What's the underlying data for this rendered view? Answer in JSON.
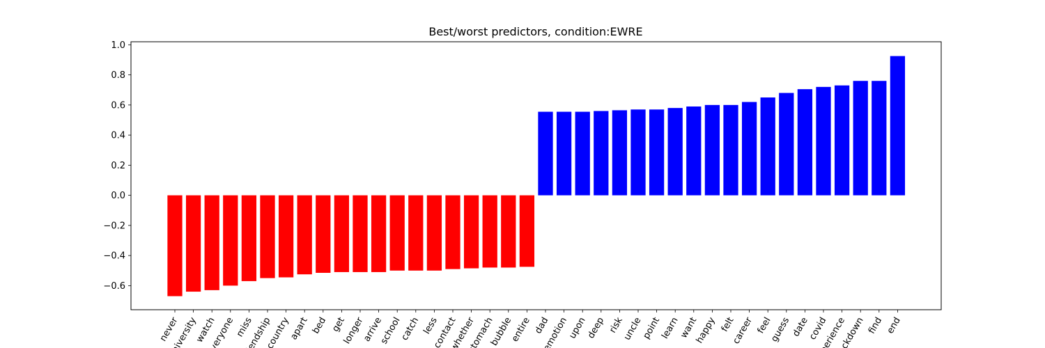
{
  "chart_data": {
    "type": "bar",
    "title": "Best/worst predictors, condition:EWRE",
    "xlabel": "",
    "ylabel": "",
    "ylim": [
      -0.76,
      1.02
    ],
    "yticks": [
      -0.6,
      -0.4,
      -0.2,
      0.0,
      0.2,
      0.4,
      0.6,
      0.8,
      1.0
    ],
    "ytick_labels": [
      "−0.6",
      "−0.4",
      "−0.2",
      "0.0",
      "0.2",
      "0.4",
      "0.6",
      "0.8",
      "1.0"
    ],
    "grid": false,
    "categories": [
      "never",
      "university",
      "watch",
      "everyone",
      "miss",
      "friendship",
      "country",
      "apart",
      "bed",
      "get",
      "longer",
      "arrive",
      "school",
      "catch",
      "less",
      "contact",
      "whether",
      "stomach",
      "bubble",
      "entire",
      "dad",
      "emotion",
      "upon",
      "deep",
      "risk",
      "uncle",
      "point",
      "learn",
      "want",
      "happy",
      "felt",
      "career",
      "feel",
      "guess",
      "date",
      "covid",
      "experience",
      "lockdown",
      "find",
      "end"
    ],
    "values": [
      -0.67,
      -0.64,
      -0.63,
      -0.6,
      -0.57,
      -0.55,
      -0.545,
      -0.525,
      -0.515,
      -0.51,
      -0.51,
      -0.51,
      -0.5,
      -0.5,
      -0.5,
      -0.49,
      -0.485,
      -0.48,
      -0.48,
      -0.475,
      0.555,
      0.555,
      0.555,
      0.56,
      0.565,
      0.57,
      0.57,
      0.58,
      0.59,
      0.6,
      0.6,
      0.62,
      0.65,
      0.68,
      0.705,
      0.72,
      0.73,
      0.76,
      0.76,
      0.925
    ],
    "colors": {
      "negative": "#ff0000",
      "positive": "#0000ff"
    }
  }
}
